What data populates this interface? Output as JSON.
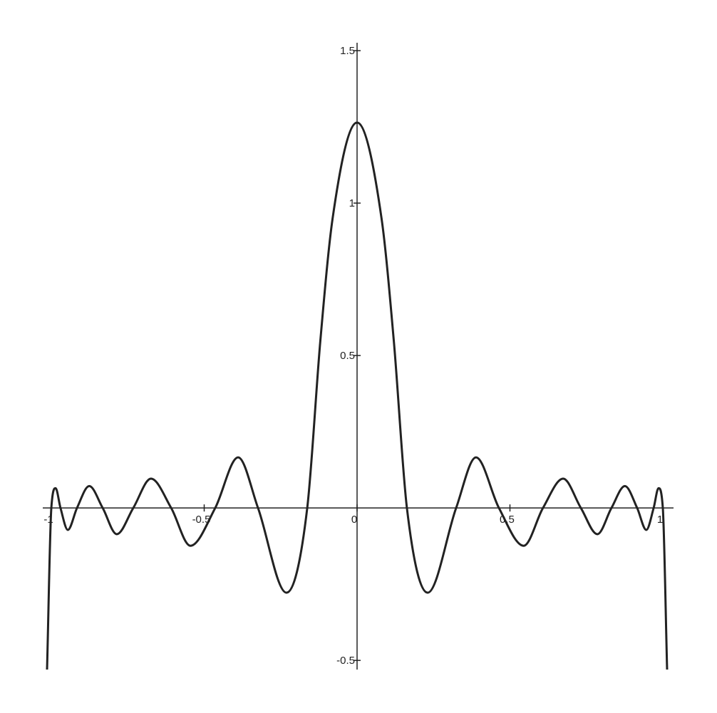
{
  "chart_data": {
    "type": "line",
    "x": [
      -1.014,
      -1.0,
      -0.986,
      -0.97,
      -0.946,
      -0.916,
      -0.876,
      -0.832,
      -0.786,
      -0.732,
      -0.674,
      -0.608,
      -0.545,
      -0.464,
      -0.389,
      -0.324,
      -0.231,
      -0.163,
      -0.12,
      -0.08,
      0,
      0.08,
      0.12,
      0.163,
      0.231,
      0.324,
      0.389,
      0.464,
      0.545,
      0.608,
      0.674,
      0.732,
      0.786,
      0.832,
      0.876,
      0.916,
      0.946,
      0.97,
      0.986,
      1.0,
      1.014
    ],
    "values": [
      -0.53,
      0,
      0.065,
      0,
      -0.072,
      0,
      0.072,
      0,
      -0.086,
      0,
      0.096,
      0,
      -0.124,
      0,
      0.166,
      0,
      -0.278,
      0,
      0.55,
      0.95,
      1.264,
      0.95,
      0.55,
      0,
      -0.278,
      0,
      0.166,
      0,
      -0.124,
      0,
      0.096,
      0,
      -0.086,
      0,
      0.072,
      0,
      -0.072,
      0,
      0.065,
      0,
      -0.53
    ],
    "color": "#222222",
    "xlim": [
      -1.028,
      1.035
    ],
    "ylim": [
      -0.53,
      1.526
    ],
    "xticks": [
      -1,
      -0.5,
      0,
      0.5,
      1
    ],
    "yticks": [
      -0.5,
      0.5,
      1,
      1.5
    ],
    "grid": false
  }
}
